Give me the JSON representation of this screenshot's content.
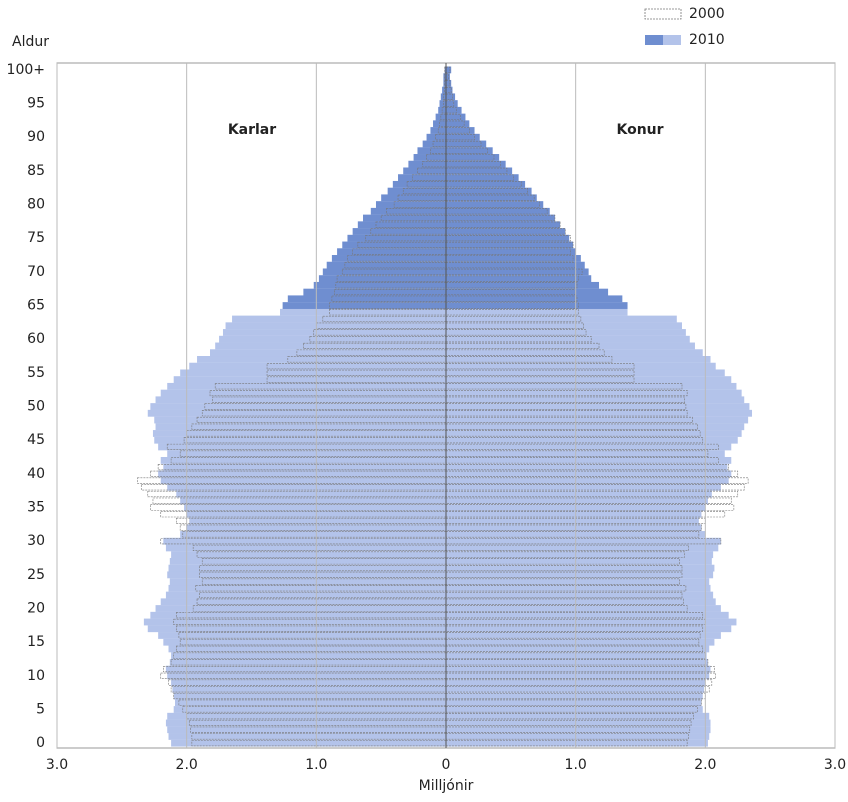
{
  "chart_data": {
    "type": "pyramid",
    "y_label": "Aldur",
    "x_label": "Milljónir",
    "groups": [
      "Karlar",
      "Konur"
    ],
    "categories": [
      0,
      null,
      null,
      null,
      null,
      5,
      null,
      null,
      null,
      null,
      10,
      null,
      null,
      null,
      null,
      15,
      null,
      null,
      null,
      null,
      20,
      null,
      null,
      null,
      null,
      25,
      null,
      null,
      null,
      null,
      30,
      null,
      null,
      null,
      null,
      35,
      null,
      null,
      null,
      null,
      40,
      null,
      null,
      null,
      null,
      45,
      null,
      null,
      null,
      null,
      50,
      null,
      null,
      null,
      null,
      55,
      null,
      null,
      null,
      null,
      60,
      null,
      null,
      null,
      null,
      65,
      null,
      null,
      null,
      null,
      70,
      null,
      null,
      null,
      null,
      75,
      null,
      null,
      null,
      null,
      80,
      null,
      null,
      null,
      null,
      85,
      null,
      null,
      null,
      null,
      90,
      null,
      null,
      null,
      null,
      95,
      null,
      null,
      null,
      null,
      "100+"
    ],
    "xlim": [
      -3,
      3
    ],
    "xticks": [
      {
        "value": -3,
        "label": "3.0"
      },
      {
        "value": -2,
        "label": "2.0"
      },
      {
        "value": -1,
        "label": "1.0"
      },
      0,
      {
        "value": 1,
        "label": "1.0"
      },
      {
        "value": 2,
        "label": "2.0"
      },
      {
        "value": 3,
        "label": "3.0"
      }
    ],
    "grid": true,
    "legend": "top-right",
    "series": [
      {
        "name": "2010",
        "color": "#b3c3ea",
        "highlight_color": "#6f8ed0",
        "highlight_from": 65,
        "values": [
          [
            2.12,
            2.14,
            2.15,
            2.16,
            2.15,
            2.1,
            2.09,
            2.1,
            2.11,
            2.12,
            2.15,
            2.16,
            2.13,
            2.12,
            2.14,
            2.18,
            2.22,
            2.3,
            2.33,
            2.28,
            2.24,
            2.2,
            2.16,
            2.14,
            2.13,
            2.15,
            2.14,
            2.13,
            2.12,
            2.16,
            2.18,
            2.05,
            2.0,
            1.98,
            2.0,
            2.02,
            2.05,
            2.08,
            2.15,
            2.2,
            2.22,
            2.18,
            2.2,
            2.15,
            2.22,
            2.25,
            2.26,
            2.24,
            2.25,
            2.3,
            2.28,
            2.24,
            2.2,
            2.15,
            2.1,
            2.05,
            1.98,
            1.92,
            1.82,
            1.78,
            1.75,
            1.72,
            1.7,
            1.65,
            1.28,
            1.26,
            1.22,
            1.1,
            1.02,
            0.98,
            0.95,
            0.92,
            0.88,
            0.84,
            0.8,
            0.76,
            0.72,
            0.68,
            0.64,
            0.58,
            0.54,
            0.5,
            0.45,
            0.41,
            0.37,
            0.33,
            0.29,
            0.25,
            0.22,
            0.18,
            0.15,
            0.12,
            0.1,
            0.08,
            0.06,
            0.05,
            0.04,
            0.03,
            0.02,
            0.02,
            0.01
          ],
          [
            2.02,
            2.03,
            2.04,
            2.04,
            2.03,
            1.98,
            1.97,
            1.98,
            1.99,
            2.0,
            2.03,
            2.04,
            2.02,
            2.01,
            2.03,
            2.07,
            2.12,
            2.2,
            2.24,
            2.18,
            2.12,
            2.08,
            2.06,
            2.04,
            2.03,
            2.06,
            2.07,
            2.05,
            2.06,
            2.1,
            2.12,
            2.0,
            1.97,
            1.95,
            1.97,
            2.0,
            2.02,
            2.05,
            2.12,
            2.18,
            2.2,
            2.17,
            2.2,
            2.15,
            2.2,
            2.25,
            2.28,
            2.3,
            2.33,
            2.36,
            2.34,
            2.3,
            2.28,
            2.24,
            2.2,
            2.15,
            2.08,
            2.04,
            1.98,
            1.92,
            1.88,
            1.85,
            1.82,
            1.78,
            1.4,
            1.4,
            1.36,
            1.25,
            1.18,
            1.12,
            1.1,
            1.07,
            1.04,
            1.0,
            0.98,
            0.95,
            0.92,
            0.88,
            0.84,
            0.8,
            0.75,
            0.7,
            0.66,
            0.61,
            0.56,
            0.51,
            0.46,
            0.41,
            0.36,
            0.31,
            0.26,
            0.22,
            0.18,
            0.15,
            0.12,
            0.09,
            0.07,
            0.05,
            0.04,
            0.03,
            0.04
          ]
        ]
      },
      {
        "name": "2000",
        "color": "#777777",
        "values": [
          [
            1.96,
            1.96,
            1.97,
            1.98,
            2.0,
            2.03,
            2.06,
            2.1,
            2.12,
            2.14,
            2.2,
            2.18,
            2.12,
            2.1,
            2.08,
            2.05,
            2.06,
            2.08,
            2.1,
            2.08,
            1.95,
            1.92,
            1.9,
            1.93,
            1.88,
            1.9,
            1.9,
            1.88,
            1.92,
            1.95,
            2.2,
            2.03,
            2.05,
            2.08,
            2.2,
            2.28,
            2.26,
            2.3,
            2.35,
            2.38,
            2.28,
            2.22,
            2.12,
            2.05,
            2.15,
            2.02,
            2.0,
            1.96,
            1.92,
            1.88,
            1.86,
            1.8,
            1.82,
            1.78,
            1.38,
            1.38,
            1.38,
            1.22,
            1.15,
            1.1,
            1.05,
            1.02,
            1.0,
            0.95,
            0.9,
            0.9,
            0.88,
            0.86,
            0.85,
            0.84,
            0.8,
            0.78,
            0.76,
            0.72,
            0.68,
            0.62,
            0.58,
            0.54,
            0.5,
            0.46,
            0.4,
            0.37,
            0.33,
            0.3,
            0.26,
            0.22,
            0.18,
            0.15,
            0.12,
            0.1,
            0.08,
            0.06,
            0.05,
            0.04,
            0.03,
            0.02,
            0.02,
            0.01,
            0.01,
            0.01,
            0.01
          ],
          [
            1.86,
            1.87,
            1.88,
            1.89,
            1.91,
            1.94,
            1.97,
            2.0,
            2.03,
            2.05,
            2.08,
            2.07,
            2.02,
            2.0,
            1.98,
            1.95,
            1.96,
            1.98,
            2.0,
            1.98,
            1.86,
            1.83,
            1.82,
            1.85,
            1.8,
            1.82,
            1.82,
            1.8,
            1.84,
            1.87,
            2.12,
            1.95,
            1.97,
            2.0,
            2.15,
            2.22,
            2.2,
            2.25,
            2.3,
            2.33,
            2.25,
            2.18,
            2.1,
            2.02,
            2.1,
            1.98,
            1.96,
            1.94,
            1.9,
            1.86,
            1.85,
            1.84,
            1.86,
            1.82,
            1.45,
            1.45,
            1.45,
            1.28,
            1.22,
            1.18,
            1.12,
            1.08,
            1.06,
            1.04,
            1.02,
            1.02,
            1.01,
            1.0,
            1.01,
            1.02,
            1.05,
            1.0,
            0.98,
            0.96,
            0.98,
            0.96,
            0.92,
            0.88,
            0.84,
            0.78,
            0.72,
            0.68,
            0.63,
            0.58,
            0.52,
            0.47,
            0.42,
            0.37,
            0.32,
            0.27,
            0.22,
            0.18,
            0.14,
            0.11,
            0.08,
            0.06,
            0.05,
            0.04,
            0.03,
            0.02,
            0.03
          ]
        ]
      }
    ]
  }
}
